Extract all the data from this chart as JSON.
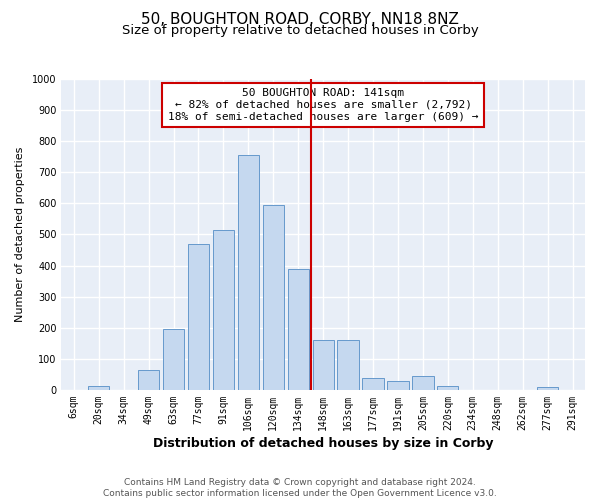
{
  "title": "50, BOUGHTON ROAD, CORBY, NN18 8NZ",
  "subtitle": "Size of property relative to detached houses in Corby",
  "xlabel": "Distribution of detached houses by size in Corby",
  "ylabel": "Number of detached properties",
  "bar_labels": [
    "6sqm",
    "20sqm",
    "34sqm",
    "49sqm",
    "63sqm",
    "77sqm",
    "91sqm",
    "106sqm",
    "120sqm",
    "134sqm",
    "148sqm",
    "163sqm",
    "177sqm",
    "191sqm",
    "205sqm",
    "220sqm",
    "234sqm",
    "248sqm",
    "262sqm",
    "277sqm",
    "291sqm"
  ],
  "bar_values": [
    0,
    12,
    0,
    65,
    195,
    470,
    515,
    755,
    595,
    390,
    160,
    160,
    40,
    28,
    45,
    13,
    0,
    0,
    0,
    8,
    0
  ],
  "bar_color": "#c5d8ef",
  "bar_edgecolor": "#6699cc",
  "vline_color": "#cc0000",
  "annotation_title": "50 BOUGHTON ROAD: 141sqm",
  "annotation_line1": "← 82% of detached houses are smaller (2,792)",
  "annotation_line2": "18% of semi-detached houses are larger (609) →",
  "annotation_box_edgecolor": "#cc0000",
  "ylim": [
    0,
    1000
  ],
  "yticks": [
    0,
    100,
    200,
    300,
    400,
    500,
    600,
    700,
    800,
    900,
    1000
  ],
  "footer_line1": "Contains HM Land Registry data © Crown copyright and database right 2024.",
  "footer_line2": "Contains public sector information licensed under the Open Government Licence v3.0.",
  "bg_color": "#ffffff",
  "plot_bg_color": "#e8eef7",
  "grid_color": "#ffffff",
  "title_fontsize": 11,
  "subtitle_fontsize": 9.5,
  "xlabel_fontsize": 9,
  "ylabel_fontsize": 8,
  "tick_fontsize": 7,
  "annotation_fontsize": 8,
  "footer_fontsize": 6.5
}
